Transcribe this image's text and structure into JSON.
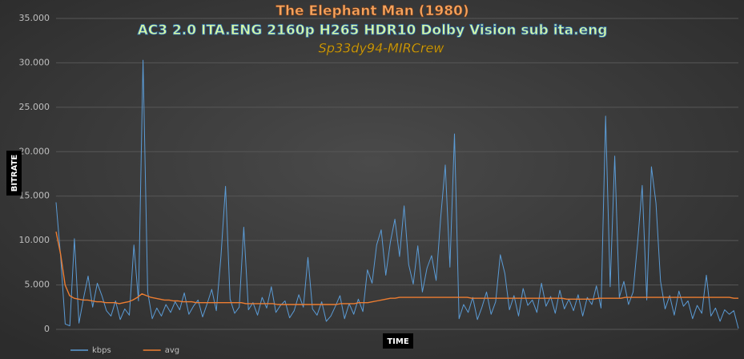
{
  "chart_data": {
    "type": "line",
    "title": "The Elephant Man (1980)",
    "subtitle": "AC3 2.0 ITA.ENG 2160p H265 HDR10 Dolby Vision sub ita.eng",
    "credit": "Sp33dy94-MIRCrew",
    "x_label": "TIME",
    "y_label": "BITRATE",
    "ylim": [
      0,
      35000
    ],
    "yticks": [
      0,
      {
        "value": 5000,
        "label": "5.000"
      },
      {
        "value": 10000,
        "label": "10.000"
      },
      {
        "value": 15000,
        "label": "15.000"
      },
      {
        "value": 20000,
        "label": "20.000"
      },
      {
        "value": 25000,
        "label": "25.000"
      },
      {
        "value": 30000,
        "label": "30.000"
      },
      {
        "value": 35000,
        "label": "35.000"
      }
    ],
    "grid": true,
    "legend": "bottom-left",
    "series": [
      {
        "name": "kbps",
        "color": "#5b9bd5",
        "values": [
          14300,
          8200,
          600,
          400,
          10200,
          700,
          3500,
          6000,
          2500,
          5200,
          3800,
          2100,
          1500,
          3200,
          1100,
          2300,
          1600,
          9500,
          3200,
          30300,
          4200,
          1200,
          2400,
          1500,
          2800,
          1900,
          3100,
          2200,
          4100,
          1700,
          2600,
          3300,
          1400,
          2900,
          4500,
          2100,
          8200,
          16100,
          3400,
          1800,
          2500,
          11500,
          2200,
          3000,
          1600,
          3600,
          2400,
          4800,
          1900,
          2700,
          3200,
          1300,
          2100,
          3900,
          2500,
          8100,
          2300,
          1600,
          3100,
          900,
          1500,
          2600,
          3800,
          1200,
          2900,
          1700,
          3400,
          2000,
          6700,
          5200,
          9500,
          11200,
          6100,
          9800,
          12400,
          8200,
          13900,
          7300,
          5100,
          9400,
          4200,
          6900,
          8300,
          5500,
          12600,
          18500,
          7000,
          22000,
          1200,
          2800,
          1900,
          3600,
          1100,
          2500,
          4200,
          1700,
          3100,
          8400,
          6300,
          2200,
          3800,
          1500,
          4600,
          2700,
          3300,
          1900,
          5200,
          2600,
          3700,
          1800,
          4400,
          2300,
          3400,
          2100,
          3900,
          1500,
          3600,
          2800,
          4900,
          2400,
          24000,
          4800,
          19500,
          3600,
          5400,
          2800,
          4200,
          9800,
          16200,
          3300,
          18300,
          14200,
          5400,
          2300,
          3800,
          1600,
          4300,
          2600,
          3200,
          1200,
          2700,
          1800,
          6100,
          1500,
          2400,
          900,
          2200,
          1700,
          2100,
          100
        ]
      },
      {
        "name": "avg",
        "color": "#ed7d31",
        "values": [
          11000,
          8500,
          5000,
          3800,
          3500,
          3400,
          3300,
          3300,
          3200,
          3100,
          3100,
          3000,
          3000,
          3000,
          2900,
          3000,
          3100,
          3300,
          3600,
          4000,
          3800,
          3600,
          3500,
          3400,
          3300,
          3300,
          3200,
          3200,
          3100,
          3100,
          3100,
          3000,
          3000,
          3000,
          3000,
          3000,
          3000,
          3000,
          3000,
          3000,
          3000,
          3000,
          2900,
          2900,
          2900,
          2900,
          2900,
          2900,
          2900,
          2800,
          2800,
          2800,
          2800,
          2800,
          2800,
          2800,
          2800,
          2800,
          2800,
          2800,
          2800,
          2800,
          2800,
          2900,
          2900,
          2900,
          2900,
          3000,
          3000,
          3000,
          3100,
          3200,
          3300,
          3400,
          3500,
          3500,
          3600,
          3600,
          3600,
          3600,
          3600,
          3600,
          3600,
          3600,
          3600,
          3600,
          3600,
          3600,
          3600,
          3600,
          3600,
          3600,
          3500,
          3500,
          3500,
          3500,
          3500,
          3500,
          3500,
          3500,
          3500,
          3500,
          3500,
          3500,
          3500,
          3500,
          3500,
          3500,
          3500,
          3500,
          3500,
          3500,
          3500,
          3400,
          3400,
          3400,
          3400,
          3400,
          3400,
          3400,
          3500,
          3500,
          3500,
          3500,
          3500,
          3500,
          3600,
          3600,
          3600,
          3600,
          3600,
          3600,
          3600,
          3600,
          3600,
          3600,
          3600,
          3600,
          3600,
          3600,
          3600,
          3600,
          3600,
          3600,
          3600,
          3600,
          3600,
          3600,
          3600,
          3600,
          3500,
          3500
        ]
      }
    ]
  }
}
